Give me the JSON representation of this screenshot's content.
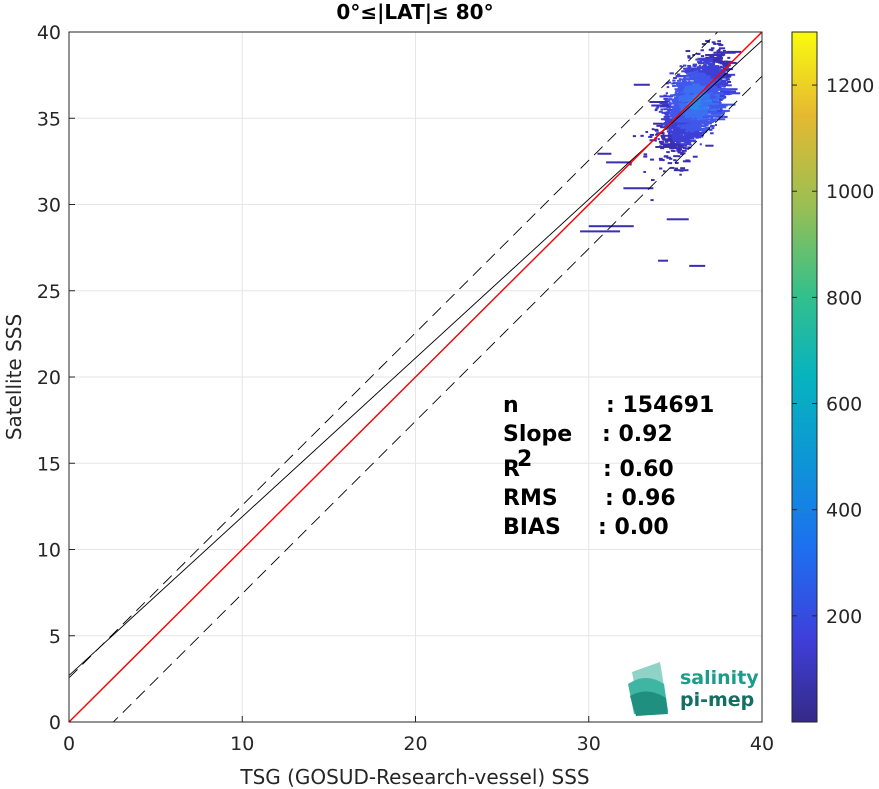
{
  "chart_data": {
    "type": "heatmap",
    "title": "0°≤|LAT|≤ 80°",
    "xlabel": "TSG (GOSUD-Research-vessel) SSS",
    "ylabel": "Satellite SSS",
    "xlim": [
      0,
      40
    ],
    "ylim": [
      0,
      40
    ],
    "xticks": [
      "0",
      "10",
      "20",
      "30",
      "40"
    ],
    "yticks": [
      "0",
      "5",
      "10",
      "15",
      "20",
      "25",
      "30",
      "35",
      "40"
    ],
    "grid": true,
    "colorbar": {
      "range": [
        0,
        1300
      ],
      "ticks": [
        "200",
        "400",
        "600",
        "800",
        "1000",
        "1200"
      ],
      "colormap": "parula"
    },
    "density_center": {
      "x": 36,
      "y": 36
    },
    "reference_lines": [
      {
        "role": "identity",
        "slope": 1,
        "intercept": 0,
        "color": "#000000",
        "style": "solid"
      },
      {
        "role": "identity-upper",
        "slope": 1,
        "intercept": 2.56,
        "color": "#000000",
        "style": "dashed"
      },
      {
        "role": "fit",
        "slope": 0.92,
        "intercept": 2.7,
        "color": "#000000",
        "style": "solid"
      },
      {
        "role": "identity-lower",
        "slope": 1,
        "intercept": -2.56,
        "color": "#000000",
        "style": "dashed"
      },
      {
        "role": "regression",
        "slope": 1.0,
        "intercept": 0,
        "color": "#ff0000",
        "style": "solid"
      }
    ],
    "stats": [
      {
        "label": "n",
        "value": ": 154691"
      },
      {
        "label": "Slope",
        "value": ": 0.92"
      },
      {
        "label": "R",
        "sup": "2",
        "value": ": 0.60"
      },
      {
        "label": "RMS",
        "value": ": 0.96"
      },
      {
        "label": "BIAS",
        "value": ": 0.00"
      }
    ]
  },
  "logo": {
    "line1": "salinity",
    "line2": "pi-mep"
  },
  "colors": {
    "regression": "#ff0000",
    "logo": "#1a9e8c",
    "grid": "#e6e6e6"
  }
}
